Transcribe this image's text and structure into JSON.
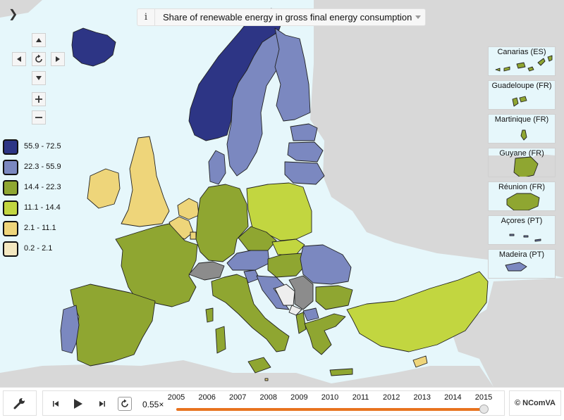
{
  "header": {
    "collapse_glyph": "❯",
    "info_glyph": "i",
    "indicator_title": "Share of renewable energy in gross final energy consumption"
  },
  "legend": {
    "classes": [
      {
        "range": "55.9 - 72.5",
        "color": "#2d3585"
      },
      {
        "range": "22.3 - 55.9",
        "color": "#7b88c0"
      },
      {
        "range": "14.4 - 22.3",
        "color": "#8fa631"
      },
      {
        "range": "11.1 - 14.4",
        "color": "#c2d640"
      },
      {
        "range": "2.1 - 11.1",
        "color": "#eed57a"
      },
      {
        "range": "0.2 - 2.1",
        "color": "#f4e8c0"
      }
    ]
  },
  "insets": [
    {
      "label": "Canarias (ES)"
    },
    {
      "label": "Guadeloupe (FR)"
    },
    {
      "label": "Martinique (FR)"
    },
    {
      "label": "Guyane (FR)"
    },
    {
      "label": "Réunion (FR)"
    },
    {
      "label": "Açores (PT)"
    },
    {
      "label": "Madeira (PT)"
    }
  ],
  "timeline": {
    "speed": "0.55×",
    "years": [
      "2005",
      "2006",
      "2007",
      "2008",
      "2009",
      "2010",
      "2011",
      "2012",
      "2013",
      "2014",
      "2015"
    ],
    "selected_year": "2015",
    "progress": 1.0
  },
  "copyright": "© NComVA",
  "icons": {
    "tools": "wrench-icon",
    "step_back": "step-back-icon",
    "play": "play-icon",
    "step_forward": "step-forward-icon",
    "loop": "loop-icon"
  }
}
